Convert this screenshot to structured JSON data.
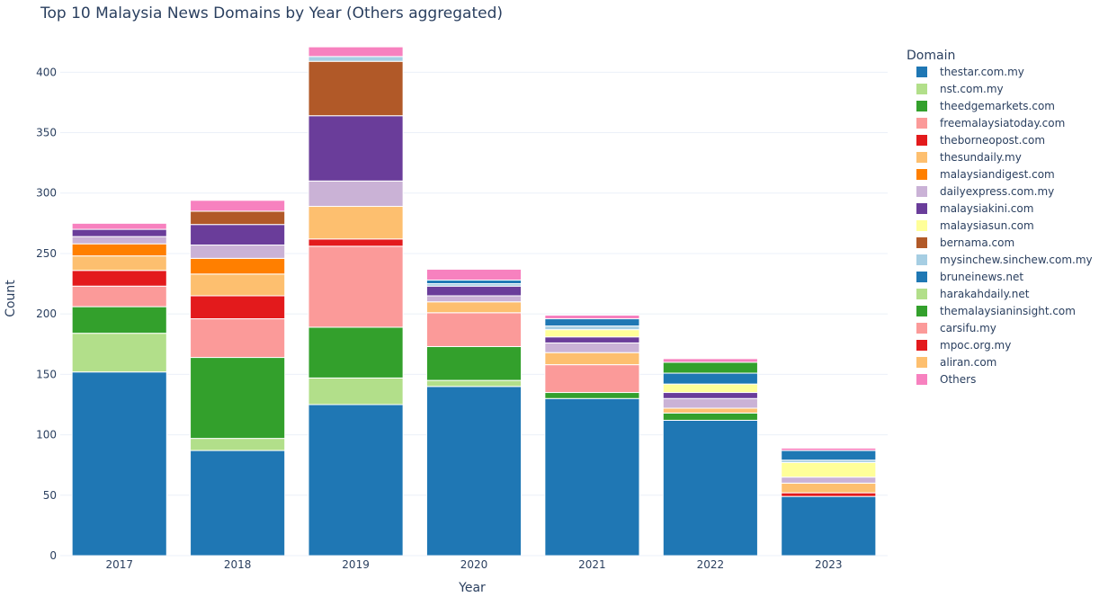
{
  "chart_data": {
    "type": "bar",
    "stacked": true,
    "title": "Top 10 Malaysia News Domains by Year (Others aggregated)",
    "xlabel": "Year",
    "ylabel": "Count",
    "ylim": [
      0,
      430
    ],
    "yticks": [
      0,
      50,
      100,
      150,
      200,
      250,
      300,
      350,
      400
    ],
    "legend_title": "Domain",
    "legend_position": "right",
    "categories": [
      "2017",
      "2018",
      "2019",
      "2020",
      "2021",
      "2022",
      "2023"
    ],
    "series": [
      {
        "name": "thestar.com.my",
        "color": "#1f77b4",
        "values": [
          152,
          87,
          125,
          140,
          130,
          112,
          49
        ]
      },
      {
        "name": "nst.com.my",
        "color": "#b2df8a",
        "values": [
          32,
          10,
          22,
          5,
          0,
          0,
          0
        ]
      },
      {
        "name": "theedgemarkets.com",
        "color": "#33a02c",
        "values": [
          22,
          67,
          42,
          28,
          5,
          6,
          0
        ]
      },
      {
        "name": "freemalaysiatoday.com",
        "color": "#fb9a99",
        "values": [
          17,
          32,
          67,
          28,
          23,
          0,
          0
        ]
      },
      {
        "name": "theborneopost.com",
        "color": "#e31a1c",
        "values": [
          13,
          19,
          6,
          0,
          0,
          0,
          3
        ]
      },
      {
        "name": "thesundaily.my",
        "color": "#fdbf6f",
        "values": [
          12,
          18,
          27,
          9,
          10,
          4,
          8
        ]
      },
      {
        "name": "malaysiandigest.com",
        "color": "#ff7f00",
        "values": [
          10,
          13,
          0,
          0,
          0,
          0,
          0
        ]
      },
      {
        "name": "dailyexpress.com.my",
        "color": "#cab2d6",
        "values": [
          6,
          11,
          21,
          5,
          8,
          8,
          5
        ]
      },
      {
        "name": "malaysiakini.com",
        "color": "#6a3d9a",
        "values": [
          6,
          17,
          54,
          8,
          5,
          5,
          0
        ]
      },
      {
        "name": "malaysiasun.com",
        "color": "#ffff99",
        "values": [
          0,
          0,
          0,
          0,
          6,
          7,
          12
        ]
      },
      {
        "name": "bernama.com",
        "color": "#b15928",
        "values": [
          0,
          11,
          45,
          0,
          0,
          0,
          0
        ]
      },
      {
        "name": "mysinchew.sinchew.com.my",
        "color": "#a6cee3",
        "values": [
          0,
          0,
          4,
          2,
          3,
          0,
          2
        ]
      },
      {
        "name": "bruneinews.net",
        "color": "#1f78b4",
        "values": [
          0,
          0,
          0,
          3,
          6,
          9,
          8
        ]
      },
      {
        "name": "harakahdaily.net",
        "color": "#b2df8a",
        "values": [
          0,
          0,
          0,
          0,
          0,
          0,
          0
        ]
      },
      {
        "name": "themalaysianinsight.com",
        "color": "#33a02c",
        "values": [
          0,
          0,
          0,
          0,
          0,
          9,
          0
        ]
      },
      {
        "name": "carsifu.my",
        "color": "#fb9a99",
        "values": [
          0,
          0,
          0,
          0,
          0,
          0,
          0
        ]
      },
      {
        "name": "mpoc.org.my",
        "color": "#e31a1c",
        "values": [
          0,
          0,
          0,
          0,
          0,
          0,
          0
        ]
      },
      {
        "name": "aliran.com",
        "color": "#fdbf6f",
        "values": [
          0,
          0,
          0,
          0,
          0,
          0,
          0
        ]
      },
      {
        "name": "Others",
        "color": "#f781bf",
        "values": [
          5,
          9,
          8,
          9,
          3,
          3,
          2
        ]
      }
    ]
  }
}
